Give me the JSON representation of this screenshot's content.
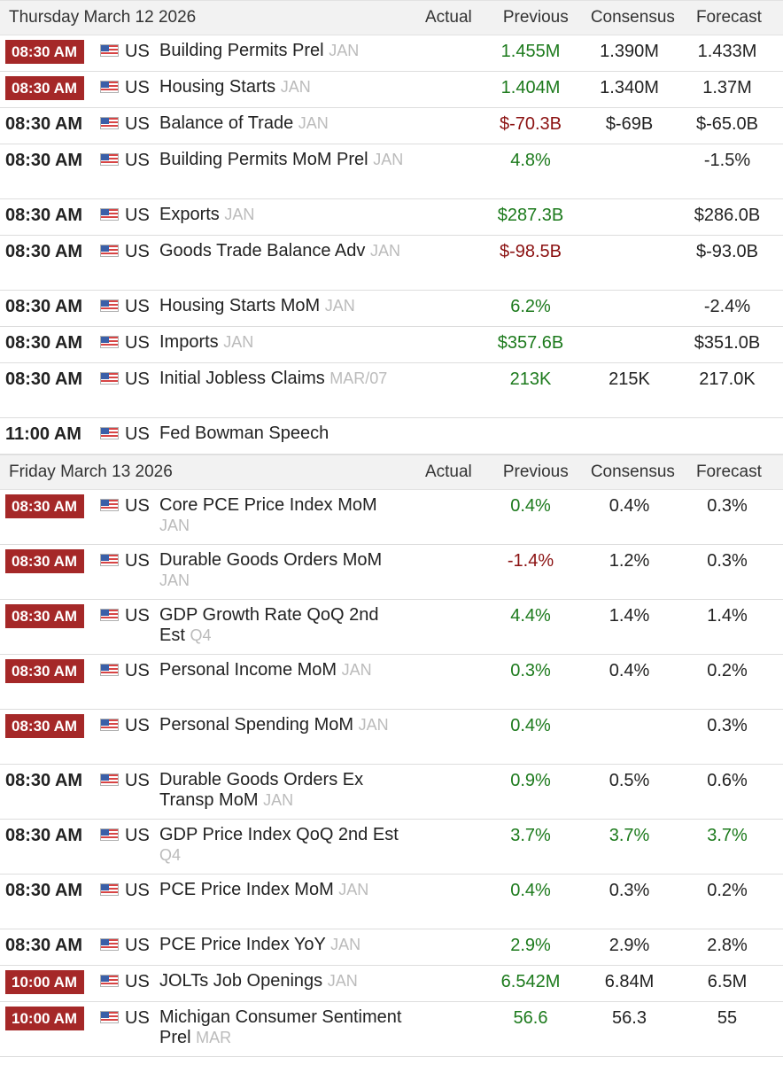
{
  "colors": {
    "badge": "#a52828",
    "positive": "#1c7a1c",
    "negative": "#8b1111",
    "reference": "#bbbbbb"
  },
  "icons": {
    "flag": "us-flag-icon"
  },
  "columns": {
    "actual": "Actual",
    "previous": "Previous",
    "consensus": "Consensus",
    "forecast": "Forecast"
  },
  "days": [
    {
      "date": "Thursday March 12 2026",
      "rows": [
        {
          "time": "08:30 AM",
          "badge": true,
          "country": "US",
          "event": "Building Permits Prel",
          "ref": "JAN",
          "actual": "",
          "previous": "1.455M",
          "prev_color": "green",
          "consensus": "1.390M",
          "forecast": "1.433M",
          "lines": 1
        },
        {
          "time": "08:30 AM",
          "badge": true,
          "country": "US",
          "event": "Housing Starts",
          "ref": "JAN",
          "actual": "",
          "previous": "1.404M",
          "prev_color": "green",
          "consensus": "1.340M",
          "forecast": "1.37M",
          "lines": 1
        },
        {
          "time": "08:30 AM",
          "badge": false,
          "country": "US",
          "event": "Balance of Trade",
          "ref": "JAN",
          "actual": "",
          "previous": "$-70.3B",
          "prev_color": "red",
          "consensus": "$-69B",
          "forecast": "$-65.0B",
          "lines": 1
        },
        {
          "time": "08:30 AM",
          "badge": false,
          "country": "US",
          "event": "Building Permits MoM Prel",
          "ref": "JAN",
          "actual": "",
          "previous": "4.8%",
          "prev_color": "green",
          "consensus": "",
          "forecast": "-1.5%",
          "lines": 2
        },
        {
          "time": "08:30 AM",
          "badge": false,
          "country": "US",
          "event": "Exports",
          "ref": "JAN",
          "actual": "",
          "previous": "$287.3B",
          "prev_color": "green",
          "consensus": "",
          "forecast": "$286.0B",
          "lines": 1
        },
        {
          "time": "08:30 AM",
          "badge": false,
          "country": "US",
          "event": "Goods Trade Balance Adv",
          "ref": "JAN",
          "actual": "",
          "previous": "$-98.5B",
          "prev_color": "red",
          "consensus": "",
          "forecast": "$-93.0B",
          "lines": 2
        },
        {
          "time": "08:30 AM",
          "badge": false,
          "country": "US",
          "event": "Housing Starts MoM",
          "ref": "JAN",
          "actual": "",
          "previous": "6.2%",
          "prev_color": "green",
          "consensus": "",
          "forecast": "-2.4%",
          "lines": 1
        },
        {
          "time": "08:30 AM",
          "badge": false,
          "country": "US",
          "event": "Imports",
          "ref": "JAN",
          "actual": "",
          "previous": "$357.6B",
          "prev_color": "green",
          "consensus": "",
          "forecast": "$351.0B",
          "lines": 1
        },
        {
          "time": "08:30 AM",
          "badge": false,
          "country": "US",
          "event": "Initial Jobless Claims",
          "ref": "MAR/07",
          "actual": "",
          "previous": "213K",
          "prev_color": "green",
          "consensus": "215K",
          "forecast": "217.0K",
          "lines": 2
        },
        {
          "time": "11:00 AM",
          "badge": false,
          "country": "US",
          "event": "Fed Bowman Speech",
          "ref": "",
          "actual": "",
          "previous": "",
          "prev_color": "green",
          "consensus": "",
          "forecast": "",
          "lines": 1
        }
      ]
    },
    {
      "date": "Friday March 13 2026",
      "rows": [
        {
          "time": "08:30 AM",
          "badge": true,
          "country": "US",
          "event": "Core PCE Price Index MoM",
          "ref": "JAN",
          "actual": "",
          "previous": "0.4%",
          "prev_color": "green",
          "consensus": "0.4%",
          "forecast": "0.3%",
          "lines": 2
        },
        {
          "time": "08:30 AM",
          "badge": true,
          "country": "US",
          "event": "Durable Goods Orders MoM",
          "ref": "JAN",
          "actual": "",
          "previous": "-1.4%",
          "prev_color": "red",
          "consensus": "1.2%",
          "forecast": "0.3%",
          "lines": 2
        },
        {
          "time": "08:30 AM",
          "badge": true,
          "country": "US",
          "event": "GDP Growth Rate QoQ 2nd Est",
          "ref": "Q4",
          "actual": "",
          "previous": "4.4%",
          "prev_color": "green",
          "consensus": "1.4%",
          "forecast": "1.4%",
          "lines": 2
        },
        {
          "time": "08:30 AM",
          "badge": true,
          "country": "US",
          "event": "Personal Income MoM",
          "ref": "JAN",
          "actual": "",
          "previous": "0.3%",
          "prev_color": "green",
          "consensus": "0.4%",
          "forecast": "0.2%",
          "lines": 2
        },
        {
          "time": "08:30 AM",
          "badge": true,
          "country": "US",
          "event": "Personal Spending MoM",
          "ref": "JAN",
          "actual": "",
          "previous": "0.4%",
          "prev_color": "green",
          "consensus": "",
          "forecast": "0.3%",
          "lines": 2
        },
        {
          "time": "08:30 AM",
          "badge": false,
          "country": "US",
          "event": "Durable Goods Orders Ex Transp MoM",
          "ref": "JAN",
          "actual": "",
          "previous": "0.9%",
          "prev_color": "green",
          "consensus": "0.5%",
          "forecast": "0.6%",
          "lines": 2
        },
        {
          "time": "08:30 AM",
          "badge": false,
          "country": "US",
          "event": "GDP Price Index QoQ 2nd Est",
          "ref": "Q4",
          "actual": "",
          "previous": "3.7%",
          "prev_color": "green",
          "consensus": "3.7%",
          "cons_color": "green",
          "forecast": "3.7%",
          "fcst_color": "green",
          "lines": 2
        },
        {
          "time": "08:30 AM",
          "badge": false,
          "country": "US",
          "event": "PCE Price Index MoM",
          "ref": "JAN",
          "actual": "",
          "previous": "0.4%",
          "prev_color": "green",
          "consensus": "0.3%",
          "forecast": "0.2%",
          "lines": 2
        },
        {
          "time": "08:30 AM",
          "badge": false,
          "country": "US",
          "event": "PCE Price Index YoY",
          "ref": "JAN",
          "actual": "",
          "previous": "2.9%",
          "prev_color": "green",
          "consensus": "2.9%",
          "forecast": "2.8%",
          "lines": 1
        },
        {
          "time": "10:00 AM",
          "badge": true,
          "country": "US",
          "event": "JOLTs Job Openings",
          "ref": "JAN",
          "actual": "",
          "previous": "6.542M",
          "prev_color": "green",
          "consensus": "6.84M",
          "forecast": "6.5M",
          "lines": 1
        },
        {
          "time": "10:00 AM",
          "badge": true,
          "country": "US",
          "event": "Michigan Consumer Sentiment Prel",
          "ref": "MAR",
          "actual": "",
          "previous": "56.6",
          "prev_color": "green",
          "consensus": "56.3",
          "forecast": "55",
          "lines": 2
        }
      ]
    }
  ]
}
